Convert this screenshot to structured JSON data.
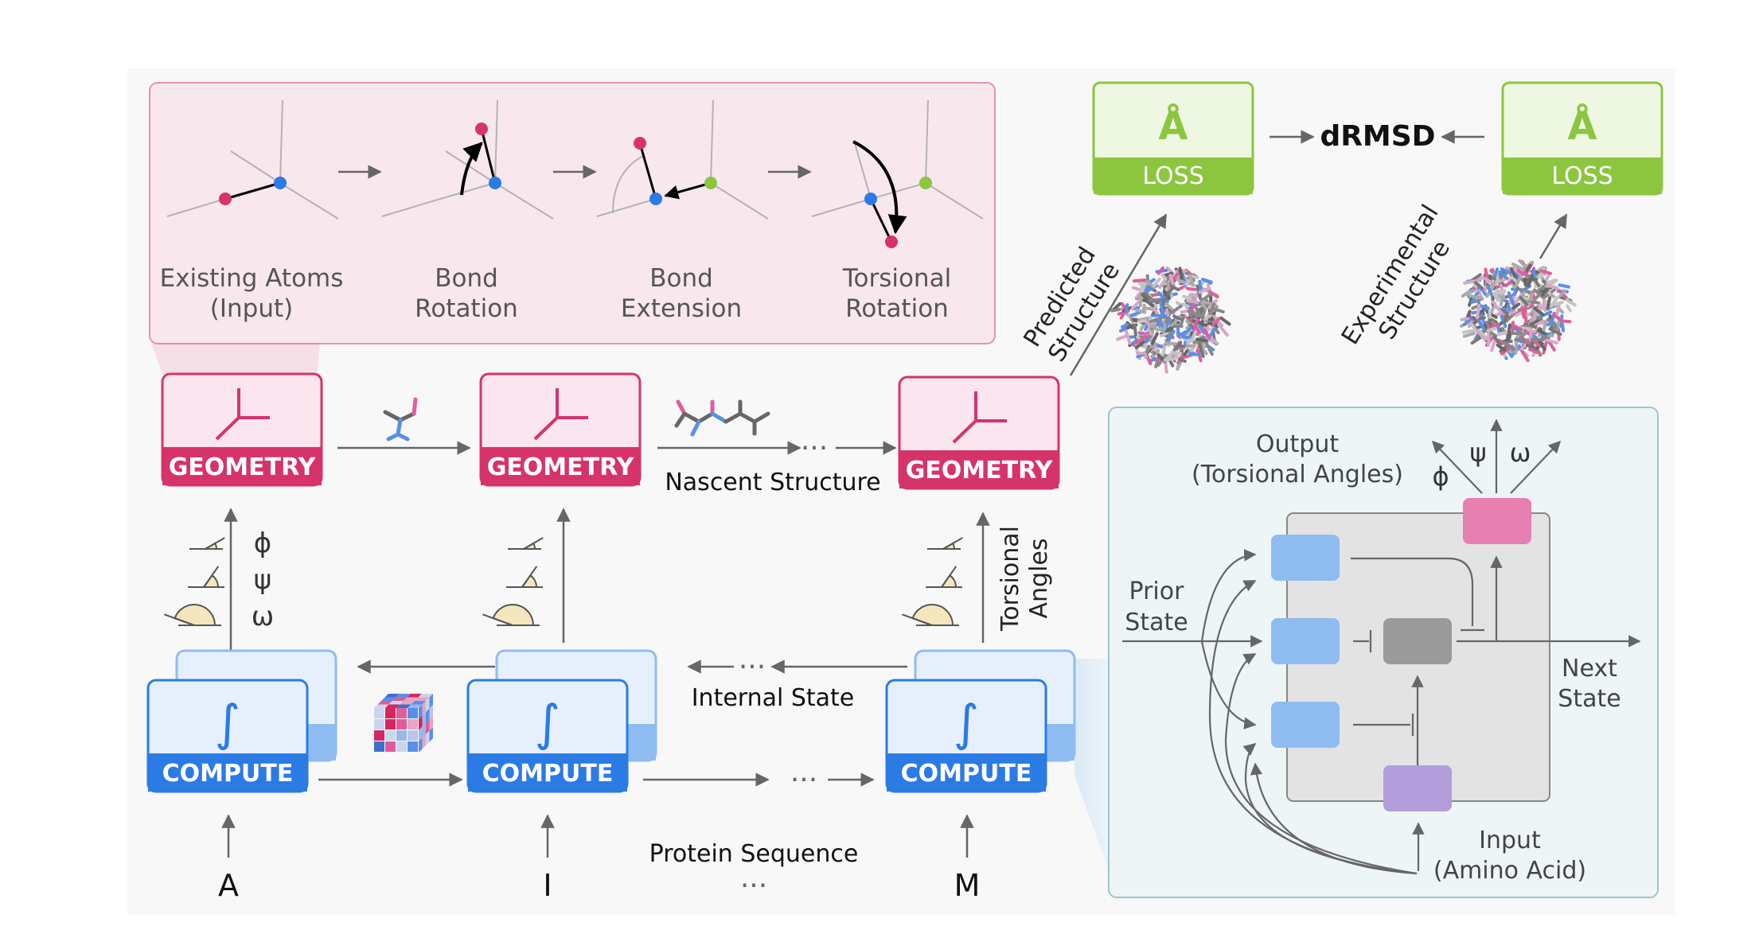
{
  "operations": {
    "existing_atoms": [
      "Existing Atoms",
      "(Input)"
    ],
    "bond_rotation": [
      "Bond",
      "Rotation"
    ],
    "bond_extension": [
      "Bond",
      "Extension"
    ],
    "torsional_rotation": [
      "Torsional",
      "Rotation"
    ]
  },
  "loss": {
    "angstrom_symbol": "Å",
    "label": "LOSS",
    "drmsd": "dRMSD",
    "predicted_structure": [
      "Predicted",
      "Structure"
    ],
    "experimental_structure": [
      "Experimental",
      "Structure"
    ]
  },
  "geometry_label": "GEOMETRY",
  "compute_label": "COMPUTE",
  "integral_symbol": "∫",
  "ellipsis": "···",
  "nascent_structure": "Nascent Structure",
  "internal_state": "Internal State",
  "protein_sequence": "Protein Sequence",
  "residues": [
    "A",
    "I",
    "M"
  ],
  "angle_symbols": [
    "ϕ",
    "ψ",
    "ω"
  ],
  "torsional_angles": [
    "Torsional",
    "Angles"
  ],
  "recurrent_cell": {
    "output": [
      "Output",
      "(Torsional Angles)"
    ],
    "prior_state": [
      "Prior",
      "State"
    ],
    "next_state": [
      "Next",
      "State"
    ],
    "input": [
      "Input",
      "(Amino Acid)"
    ]
  },
  "colors": {
    "geometry": "#d6336c",
    "geometry_fill": "#fbe5ee",
    "compute": "#2b7be5",
    "compute_fill": "#e6f0fc",
    "loss": "#8cc63f",
    "loss_fill": "#eef7e2",
    "atom_pink": "#d6336c",
    "atom_blue": "#2b7be5",
    "atom_green": "#8cc63f",
    "gate_blue": "#8fbcf0",
    "gate_gray": "#9a9a9a",
    "gate_purple": "#b39ddb",
    "gate_pink": "#e77fb0"
  }
}
